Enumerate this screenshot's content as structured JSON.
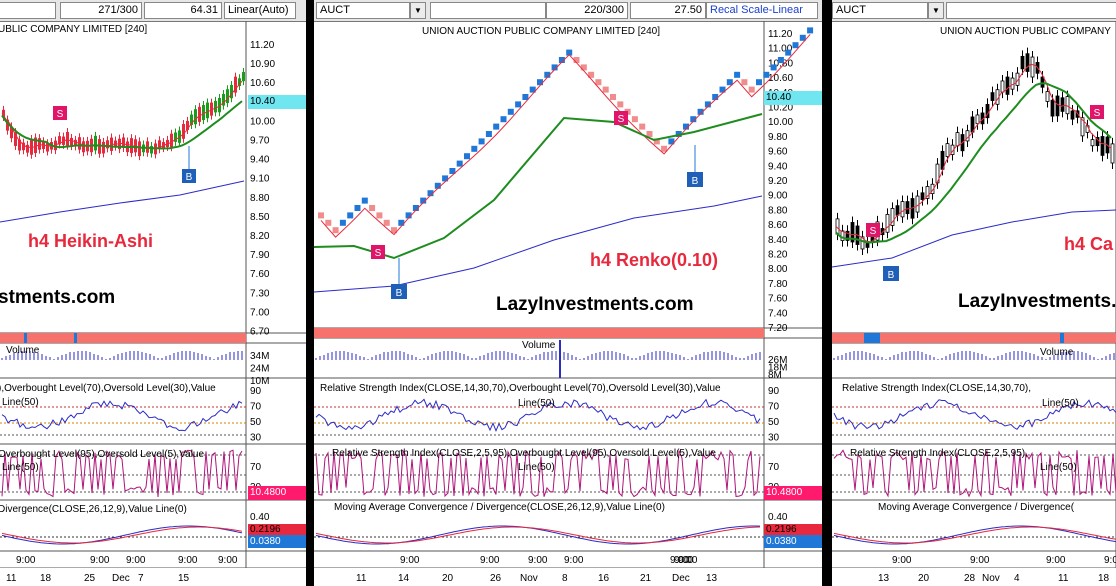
{
  "colors": {
    "bull": "#1a9d1a",
    "bear": "#e8283c",
    "renko_up": "#1f78d8",
    "renko_down": "#f08c8c",
    "ma_fast": "#e8283c",
    "ma_mid": "#1e8c1e",
    "ma_slow": "#2b2bc8",
    "price_tag": "#6fe6f0",
    "hist_tag": "#ff1a6e",
    "signal_bar": "#f5736c"
  },
  "icons": {
    "sell": "S",
    "buy": "B"
  },
  "panels": [
    {
      "title": "UBLIC COMPANY LIMITED [240]",
      "bar_count": "271/300",
      "last_value": "64.31",
      "scale_mode": "Linear(Auto)",
      "chart_label": "h4 Heikin-Ashi",
      "watermark": "stments.com",
      "price_ticks": [
        "11.20",
        "10.90",
        "10.60",
        "10.30",
        "10.00",
        "9.70",
        "9.40",
        "9.10",
        "8.80",
        "8.50",
        "8.20",
        "7.90",
        "7.60",
        "7.30",
        "7.00",
        "6.70"
      ],
      "current_price": "10.40",
      "volume_label": "Volume",
      "volume_ticks": [
        "34M",
        "24M",
        "10M"
      ],
      "rsi14_label": "),Overbought Level(70),Oversold Level(30),Value",
      "rsi14_line": "Line(50)",
      "rsi14_ticks": [
        "90",
        "70",
        "50",
        "30"
      ],
      "rsi2_label": "Overbought Level(95),Oversold Level(5),Value",
      "rsi2_line": "Line(50)",
      "rsi2_ticks": [
        "70",
        "30"
      ],
      "rsi2_value": "10.4800",
      "macd_label": "Divergence(CLOSE,26,12,9),Value Line(0)",
      "macd_ticks": [
        "0.40",
        "0.20"
      ],
      "macd_val1": "0.2196",
      "macd_val2": "0.0380",
      "time_labels": [
        "9:00",
        "9:00",
        "9:00",
        "9:00",
        "9:00"
      ],
      "date_labels": [
        "11",
        "18",
        "25",
        "Dec",
        "7",
        "15"
      ]
    },
    {
      "symbol": "AUCT",
      "title": "UNION AUCTION PUBLIC COMPANY LIMITED [240]",
      "bar_count": "220/300",
      "last_value": "27.50",
      "scale_mode": "Recal Scale-Linear",
      "chart_label": "h4 Renko(0.10)",
      "watermark": "LazyInvestments.com",
      "price_ticks": [
        "11.20",
        "11.00",
        "10.80",
        "10.60",
        "10.40",
        "10.20",
        "10.00",
        "9.80",
        "9.60",
        "9.40",
        "9.20",
        "9.00",
        "8.80",
        "8.60",
        "8.40",
        "8.20",
        "8.00",
        "7.80",
        "7.60",
        "7.40",
        "7.20"
      ],
      "current_price": "10.40",
      "volume_label": "Volume",
      "volume_ticks": [
        "26M",
        "18M",
        "8M"
      ],
      "rsi14_label": "Relative Strength Index(CLOSE,14,30,70),Overbought Level(70),Oversold Level(30),Value",
      "rsi14_line": "Line(50)",
      "rsi14_ticks": [
        "90",
        "70",
        "50",
        "30"
      ],
      "rsi2_label": "Relative Strength Index(CLOSE,2,5,95),Overbought Level(95),Oversold Level(5),Value",
      "rsi2_line": "Line(50)",
      "rsi2_ticks": [
        "70",
        "30"
      ],
      "rsi2_value": "10.4800",
      "macd_label": "Moving Average Convergence / Divergence(CLOSE,26,12,9),Value Line(0)",
      "macd_ticks": [
        "0.40",
        "0.20"
      ],
      "macd_val1": "0.2196",
      "macd_val2": "0.0380",
      "time_labels": [
        "9:00",
        "9:00",
        "9:00",
        "9:00",
        "9:00",
        "9:00",
        "9:00"
      ],
      "date_labels": [
        "11",
        "14",
        "20",
        "26",
        "Nov",
        "8",
        "16",
        "21",
        "Dec",
        "13"
      ]
    },
    {
      "symbol": "AUCT",
      "title": "UNION AUCTION PUBLIC COMPANY",
      "chart_label": "h4 Ca",
      "watermark": "LazyInvestments.",
      "volume_label": "Volume",
      "rsi14_label": "Relative Strength Index(CLOSE,14,30,70),",
      "rsi14_line": "Line(50)",
      "rsi2_label": "Relative Strength Index(CLOSE,2,5,95),",
      "rsi2_line": "Line(50)",
      "macd_label": "Moving Average Convergence / Divergence(",
      "time_labels": [
        "9:00",
        "9:00",
        "9:00",
        "9:00"
      ],
      "date_labels": [
        "13",
        "20",
        "28",
        "Nov",
        "4",
        "11",
        "18"
      ]
    }
  ]
}
